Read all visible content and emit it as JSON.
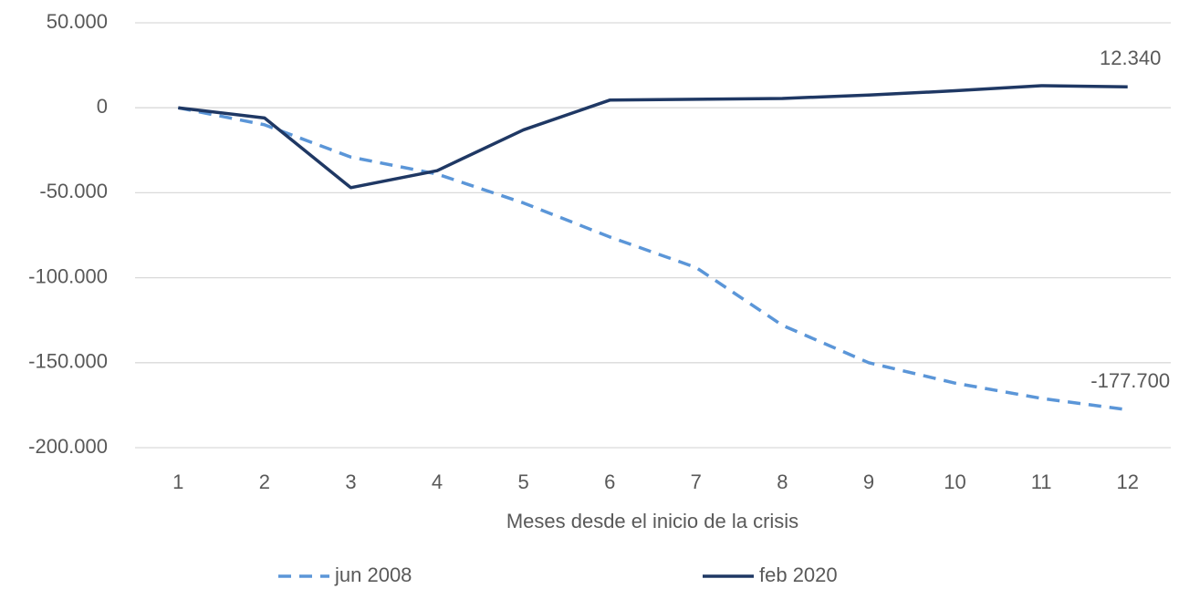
{
  "chart_data": {
    "type": "line",
    "x_label": "Meses desde el inicio de la crisis",
    "categories": [
      1,
      2,
      3,
      4,
      5,
      6,
      7,
      8,
      9,
      10,
      11,
      12
    ],
    "series": [
      {
        "name": "jun 2008",
        "color": "#5b96d8",
        "style": "dashed",
        "values": [
          0,
          -10000,
          -29000,
          -39000,
          -56000,
          -76000,
          -94000,
          -128000,
          -150000,
          -162000,
          -171000,
          -177700
        ],
        "value_labels": [
          null,
          null,
          null,
          null,
          null,
          null,
          null,
          null,
          null,
          null,
          null,
          "-177.700"
        ]
      },
      {
        "name": "feb 2020",
        "color": "#1f3864",
        "style": "solid",
        "values": [
          0,
          -6000,
          -47000,
          -37000,
          -13000,
          4500,
          5000,
          5500,
          7500,
          10000,
          13000,
          12340
        ],
        "value_labels": [
          null,
          null,
          null,
          null,
          null,
          null,
          null,
          null,
          null,
          null,
          null,
          "12.340"
        ]
      }
    ],
    "ylim": [
      -200000,
      50000
    ],
    "yticks": [
      {
        "value": 50000,
        "label": "50.000"
      },
      0,
      {
        "value": -50000,
        "label": "-50.000"
      },
      {
        "value": -100000,
        "label": "-100.000"
      },
      {
        "value": -150000,
        "label": "-150.000"
      },
      {
        "value": -200000,
        "label": "-200.000"
      }
    ],
    "grid": true,
    "legend": "bottom"
  }
}
